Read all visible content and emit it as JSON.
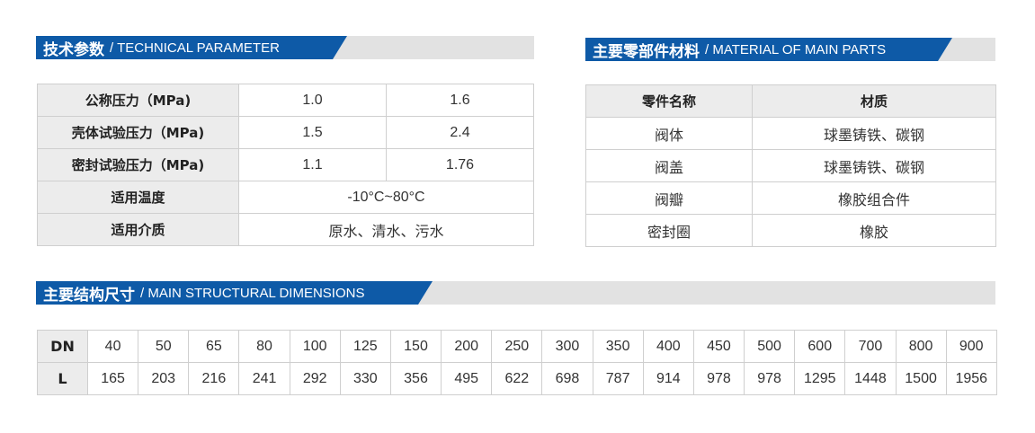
{
  "technical": {
    "title_cn": "技术参数",
    "title_en": "/ TECHNICAL PARAMETER",
    "rows": [
      {
        "label": "公称压力（MPa)",
        "values": [
          "1.0",
          "1.6"
        ]
      },
      {
        "label": "壳体试验压力（MPa)",
        "values": [
          "1.5",
          "2.4"
        ]
      },
      {
        "label": "密封试验压力（MPa)",
        "values": [
          "1.1",
          "1.76"
        ]
      },
      {
        "label": "适用温度",
        "value": "-10°C~80°C"
      },
      {
        "label": "适用介质",
        "value": "原水、清水、污水"
      }
    ]
  },
  "materials": {
    "title_cn": "主要零部件材料",
    "title_en": "/ MATERIAL OF MAIN PARTS",
    "headers": [
      "零件名称",
      "材质"
    ],
    "rows": [
      [
        "阀体",
        "球墨铸铁、碳钢"
      ],
      [
        "阀盖",
        "球墨铸铁、碳钢"
      ],
      [
        "阀瓣",
        "橡胶组合件"
      ],
      [
        "密封圈",
        "橡胶"
      ]
    ]
  },
  "dimensions": {
    "title_cn": "主要结构尺寸",
    "title_en": "/ MAIN STRUCTURAL DIMENSIONS",
    "dn_label": "DN",
    "l_label": "L",
    "dn": [
      "40",
      "50",
      "65",
      "80",
      "100",
      "125",
      "150",
      "200",
      "250",
      "300",
      "350",
      "400",
      "450",
      "500",
      "600",
      "700",
      "800",
      "900"
    ],
    "l": [
      "165",
      "203",
      "216",
      "241",
      "292",
      "330",
      "356",
      "495",
      "622",
      "698",
      "787",
      "914",
      "978",
      "978",
      "1295",
      "1448",
      "1500",
      "1956"
    ]
  },
  "colors": {
    "brand_blue": "#0e5aa7",
    "header_grey": "#e2e2e2",
    "cell_grey": "#ececec"
  }
}
